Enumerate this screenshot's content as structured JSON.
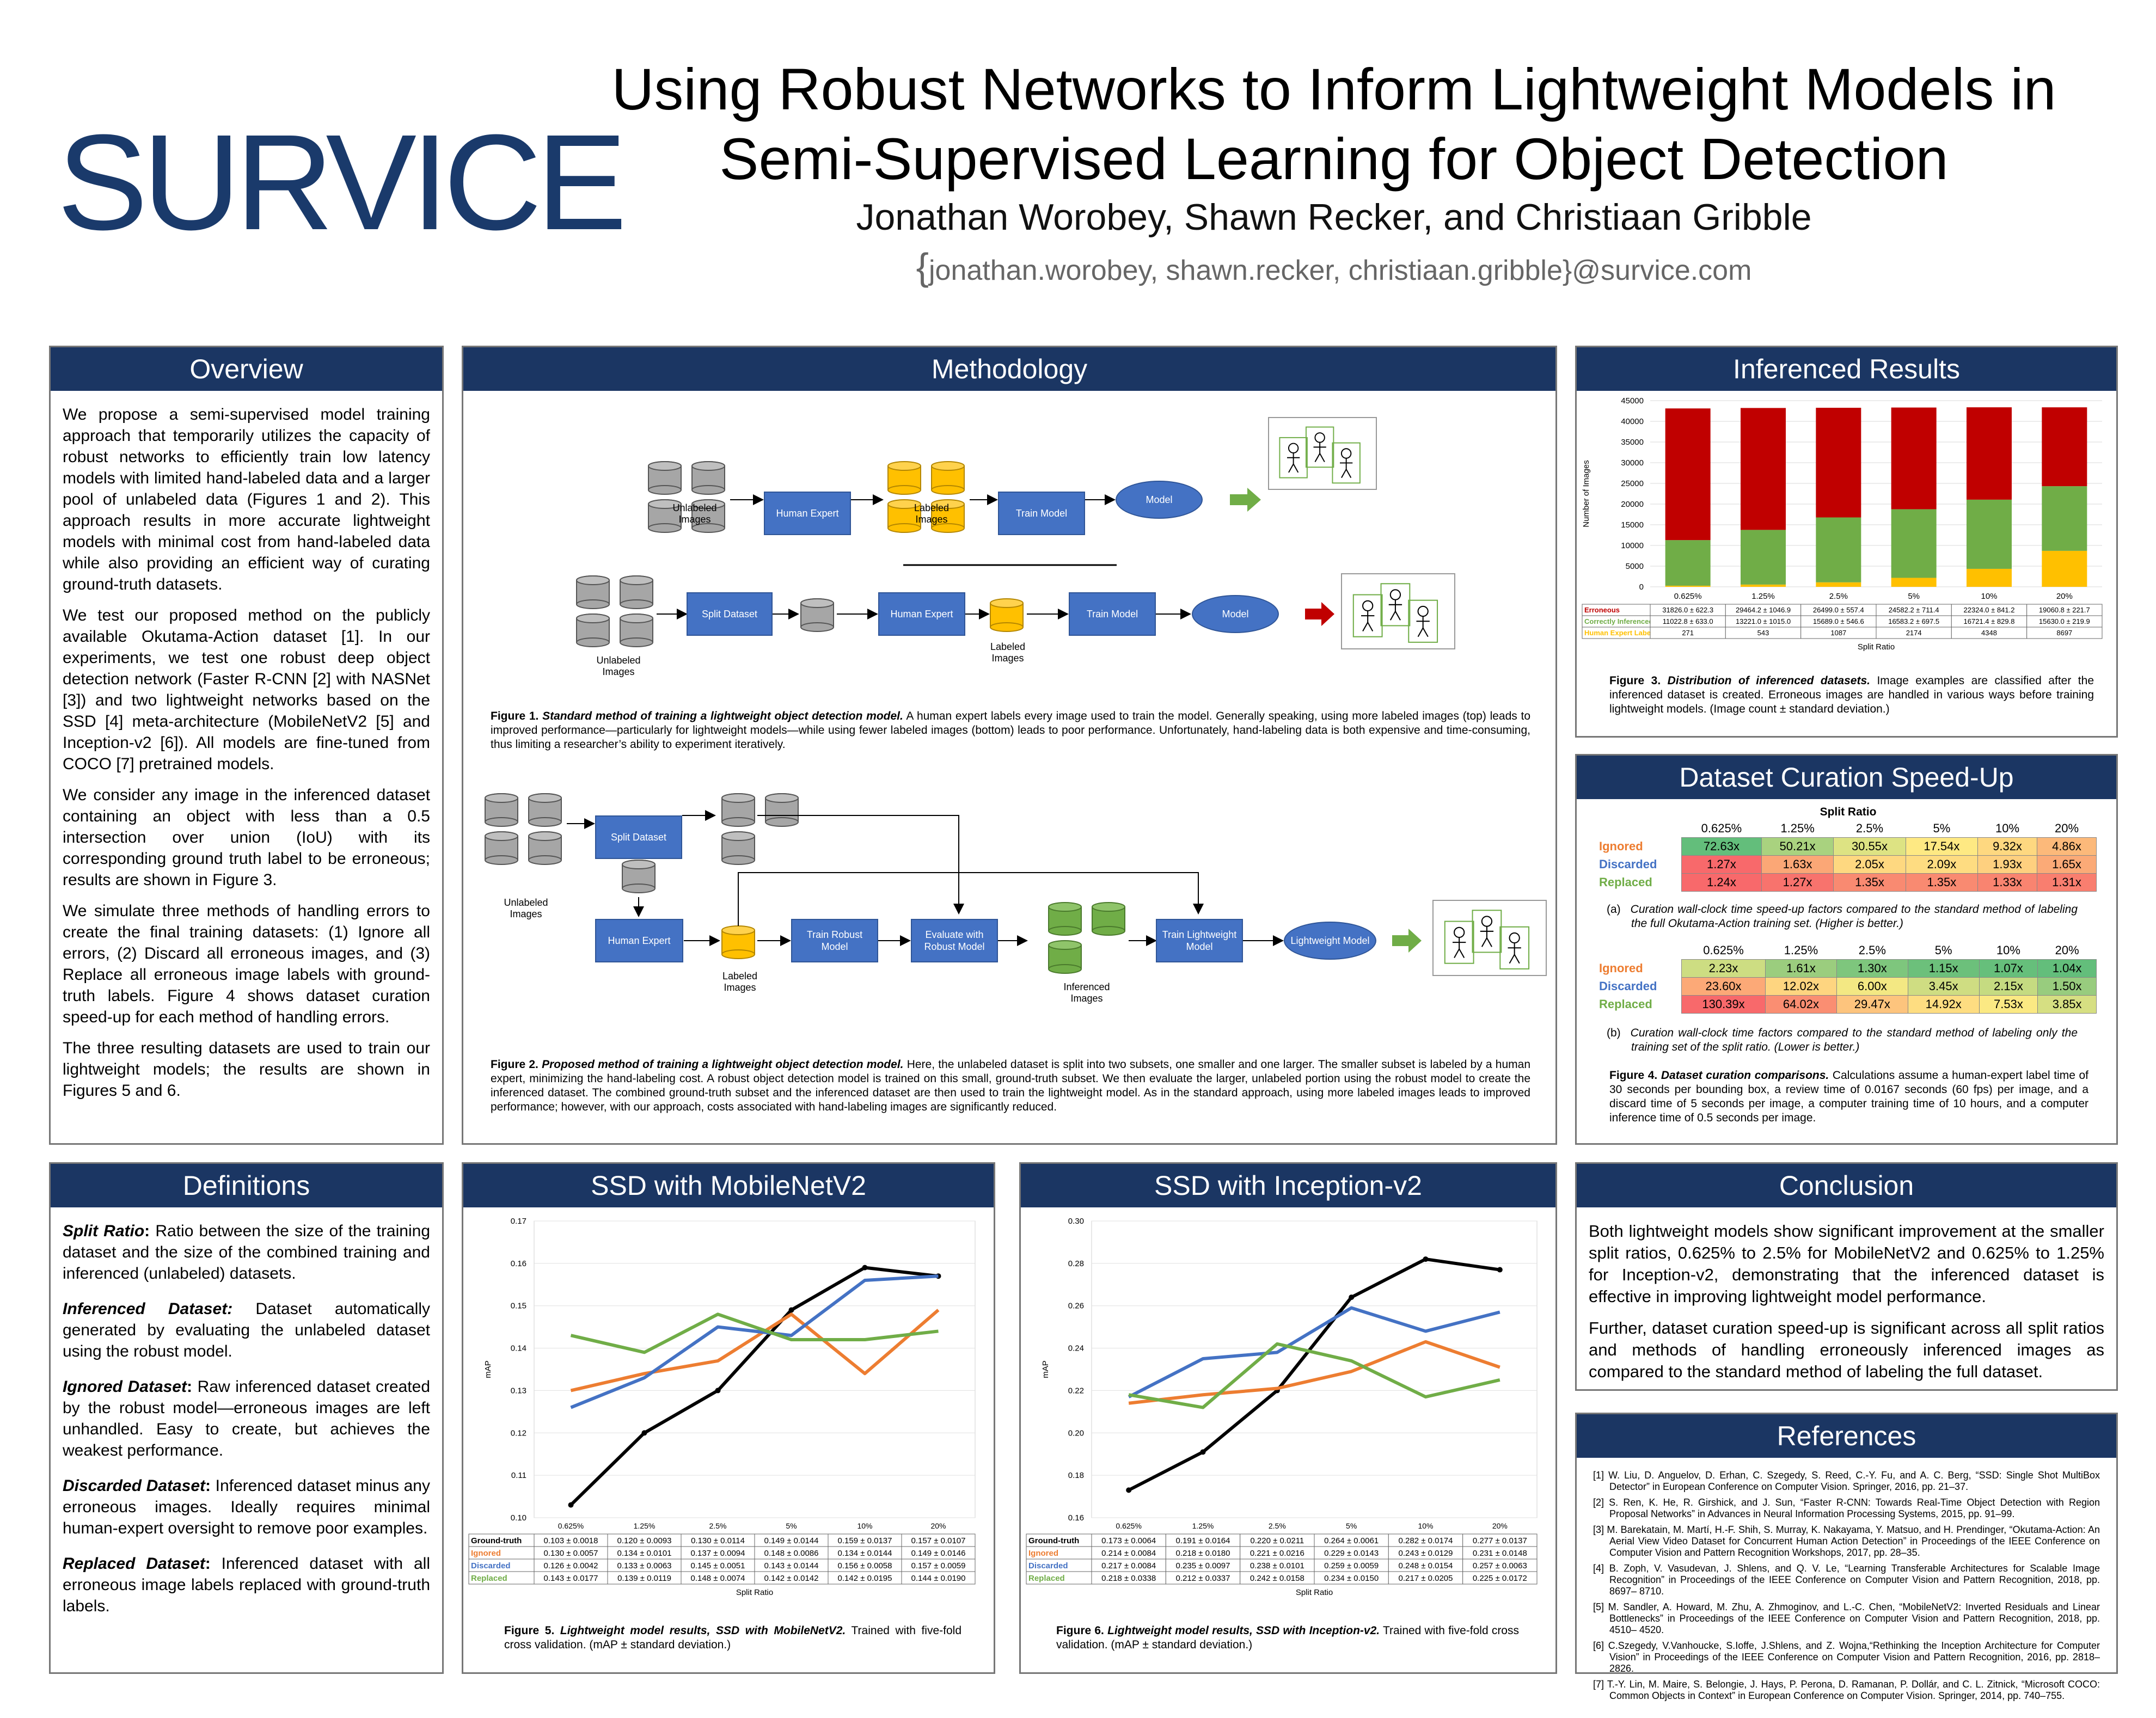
{
  "header": {
    "logo": "SURVICE",
    "title_line1": "Using Robust Networks to Inform Lightweight Models in",
    "title_line2": "Semi-Supervised Learning for Object Detection",
    "authors": "Jonathan Worobey, Shawn Recker, and Christiaan Gribble",
    "emails_brace": "{",
    "emails": "jonathan.worobey, shawn.recker, christiaan.gribble}@survice.com"
  },
  "overview": {
    "title": "Overview",
    "p1": "We propose a semi-supervised model training approach that temporarily utilizes the capacity of robust networks to efficiently train low latency models with limited hand-labeled data and a larger pool of unlabeled data (Figures 1 and 2). This approach results in more accurate lightweight models with minimal cost from hand-labeled data while also providing an efficient way of curating ground-truth datasets.",
    "p2": "We test our proposed method on the publicly available Okutama-Action dataset [1]. In our experiments, we test one robust deep object detection network (Faster R-CNN [2] with NASNet [3]) and two lightweight networks based on the SSD [4] meta-architecture (MobileNetV2 [5] and Inception-v2 [6]). All models are fine-tuned from COCO [7] pretrained models.",
    "p3": "We consider any image in the inferenced dataset containing an object with less than a 0.5 intersection over union (IoU) with its corresponding ground truth label to be erroneous; results are shown in Figure 3.",
    "p4": "We simulate three methods of handling errors to create the final training datasets: (1) Ignore all errors, (2) Discard all erroneous images, and (3) Replace all erroneous image labels with ground-truth labels. Figure 4 shows dataset curation speed-up for each method of handling errors.",
    "p5": "The three resulting datasets are used to train our lightweight models; the results are shown in Figures 5 and 6."
  },
  "methodology": {
    "title": "Methodology",
    "unlabeled_images": "Unlabeled Images",
    "labeled_images": "Labeled Images",
    "inferenced_images": "Inferenced Images",
    "human_expert": "Human Expert",
    "train_model": "Train Model",
    "model": "Model",
    "split_dataset": "Split Dataset",
    "train_robust_model": "Train Robust Model",
    "evaluate_with_robust_model": "Evaluate with Robust Model",
    "train_lightweight_model": "Train Lightweight Model",
    "lightweight_model": "Lightweight Model",
    "fig1_label": "Figure 1.",
    "fig1_bold": "Standard method of training a lightweight object detection model.",
    "fig1_text": "A human expert labels every image used to train the model. Generally speaking, using more labeled images (top) leads to improved performance—particularly for lightweight models—while using fewer labeled images (bottom) leads to poor performance. Unfortunately, hand-labeling data is both expensive and time-consuming, thus limiting a researcher’s ability to experiment iteratively.",
    "fig2_label": "Figure 2.",
    "fig2_bold": "Proposed method of training a lightweight object detection model.",
    "fig2_text": "Here, the unlabeled dataset is split into two subsets, one smaller and one larger. The smaller subset is labeled by a human expert, minimizing the hand-labeling cost. A robust object detection model is trained on this small, ground-truth subset. We then evaluate the larger, unlabeled portion using the robust model to create the inferenced dataset. The combined ground-truth subset and the inferenced dataset are then used to train the lightweight model. As in the standard approach, using more labeled images leads to improved performance; however, with our approach, costs associated with hand-labeling images are significantly reduced."
  },
  "inferenced": {
    "title": "Inferenced Results",
    "chart_data": {
      "type": "bar",
      "stacked": true,
      "categories": [
        "0.625%",
        "1.25%",
        "2.5%",
        "5%",
        "10%",
        "20%"
      ],
      "xlabel": "Split Ratio",
      "ylabel": "Number of Images",
      "ylim": [
        0,
        45000
      ],
      "yticks": [
        0,
        5000,
        10000,
        15000,
        20000,
        25000,
        30000,
        35000,
        40000,
        45000
      ],
      "series": [
        {
          "name": "Human Expert Labeled",
          "color": "#ffc000",
          "values": [
            271,
            543,
            1087,
            2174,
            4348,
            8697
          ]
        },
        {
          "name": "Correctly Inferenced",
          "color": "#70ad47",
          "values": [
            11022.8,
            13221.0,
            15689.0,
            16583.2,
            16721.4,
            15630.0
          ]
        },
        {
          "name": "Erroneous",
          "color": "#c00000",
          "values": [
            31826.0,
            29464.2,
            26499.0,
            24582.2,
            22324.0,
            19060.8
          ]
        }
      ],
      "table_rows": [
        {
          "name": "Erroneous",
          "color": "#c00000",
          "cells": [
            "31826.0 ± 622.3",
            "29464.2 ± 1046.9",
            "26499.0 ± 557.4",
            "24582.2 ± 711.4",
            "22324.0 ± 841.2",
            "19060.8 ± 221.7"
          ]
        },
        {
          "name": "Correctly Inferenced",
          "color": "#70ad47",
          "cells": [
            "11022.8 ± 633.0",
            "13221.0 ± 1015.0",
            "15689.0 ± 546.6",
            "16583.2 ± 697.5",
            "16721.4 ± 829.8",
            "15630.0 ± 219.9"
          ]
        },
        {
          "name": "Human Expert Labeled",
          "color": "#ffc000",
          "cells": [
            "271",
            "543",
            "1087",
            "2174",
            "4348",
            "8697"
          ]
        }
      ]
    },
    "fig3_label": "Figure 3.",
    "fig3_bold": "Distribution of inferenced datasets.",
    "fig3_text": "Image examples are classified after the inferenced dataset is created. Erroneous images are handled in various ways before training lightweight models. (Image count ± standard deviation.)"
  },
  "speedup": {
    "title": "Dataset Curation Speed-Up",
    "split_ratio": "Split Ratio",
    "cols": [
      "0.625%",
      "1.25%",
      "2.5%",
      "5%",
      "10%",
      "20%"
    ],
    "table_a": [
      {
        "name": "Ignored",
        "color": "#ed7d31",
        "cells": [
          "72.63x",
          "50.21x",
          "30.55x",
          "17.54x",
          "9.32x",
          "4.86x"
        ],
        "bg": [
          "#63be7b",
          "#a9d27f",
          "#dde383",
          "#fee983",
          "#fed880",
          "#fcb97a"
        ]
      },
      {
        "name": "Discarded",
        "color": "#4472c4",
        "cells": [
          "1.27x",
          "1.63x",
          "2.05x",
          "2.09x",
          "1.93x",
          "1.65x"
        ],
        "bg": [
          "#f8696b",
          "#fba776",
          "#fed880",
          "#fedc81",
          "#fed07f",
          "#fbaa77"
        ]
      },
      {
        "name": "Replaced",
        "color": "#70ad47",
        "cells": [
          "1.24x",
          "1.27x",
          "1.35x",
          "1.35x",
          "1.33x",
          "1.31x"
        ],
        "bg": [
          "#f8696b",
          "#f8736d",
          "#f98a71",
          "#f98a71",
          "#f98470",
          "#f97e6f"
        ]
      }
    ],
    "caption_a_label": "(a)",
    "caption_a": "Curation wall-clock time speed-up factors compared to the standard method of labeling the full Okutama-Action training set. (Higher is better.)",
    "table_b": [
      {
        "name": "Ignored",
        "color": "#ed7d31",
        "cells": [
          "2.23x",
          "1.61x",
          "1.30x",
          "1.15x",
          "1.07x",
          "1.04x"
        ],
        "bg": [
          "#cddd82",
          "#9bcd7e",
          "#7ec67d",
          "#6cc07b",
          "#66bf7b",
          "#63be7b"
        ]
      },
      {
        "name": "Discarded",
        "color": "#4472c4",
        "cells": [
          "23.60x",
          "12.02x",
          "6.00x",
          "3.45x",
          "2.15x",
          "1.50x"
        ],
        "bg": [
          "#fca977",
          "#fed580",
          "#f3e883",
          "#cfdd82",
          "#c5db81",
          "#98cc7e"
        ]
      },
      {
        "name": "Replaced",
        "color": "#70ad47",
        "cells": [
          "130.39x",
          "64.02x",
          "29.47x",
          "14.92x",
          "7.53x",
          "3.85x"
        ],
        "bg": [
          "#f8696b",
          "#fa8e72",
          "#fdc47d",
          "#fedd81",
          "#fbe983",
          "#d6df82"
        ]
      }
    ],
    "caption_b_label": "(b)",
    "caption_b": "Curation wall-clock time factors compared to the standard method of labeling only the training set of the split ratio. (Lower is better.)",
    "fig4_label": "Figure 4.",
    "fig4_bold": "Dataset curation comparisons.",
    "fig4_text": "Calculations assume a human-expert label time of 30 seconds per bounding box, a review time of 0.0167 seconds (60 fps) per image, and a discard time of 5 seconds per image, a computer training time of 10 hours, and a computer inference time of 0.5 seconds per image."
  },
  "definitions": {
    "title": "Definitions",
    "items": [
      {
        "term": "Split Ratio",
        "text": "Ratio between the size of the training dataset and the size of the combined training and inferenced (unlabeled) datasets."
      },
      {
        "term": "Inferenced Dataset:",
        "text": "Dataset automatically generated by evaluating the unlabeled dataset using the robust model."
      },
      {
        "term": "Ignored Dataset",
        "text": "Raw inferenced dataset created by the robust model—erroneous images are left unhandled. Easy to create, but achieves the weakest performance."
      },
      {
        "term": "Discarded Dataset",
        "text": "Inferenced dataset minus any erroneous images. Ideally requires minimal human-expert oversight to remove poor examples."
      },
      {
        "term": "Replaced Dataset",
        "text": "Inferenced dataset with all erroneous image labels replaced with ground-truth labels."
      }
    ]
  },
  "mobilenet": {
    "title": "SSD with MobileNetV2",
    "chart_data": {
      "type": "line",
      "categories": [
        "0.625%",
        "1.25%",
        "2.5%",
        "5%",
        "10%",
        "20%"
      ],
      "xlabel": "Split Ratio",
      "ylabel": "mAP",
      "ylim": [
        0.1,
        0.17
      ],
      "yticks": [
        "0.10",
        "0.11",
        "0.12",
        "0.13",
        "0.14",
        "0.15",
        "0.16",
        "0.17"
      ],
      "series": [
        {
          "name": "Ground-truth",
          "color": "#000000",
          "values": [
            0.103,
            0.12,
            0.13,
            0.149,
            0.159,
            0.157
          ]
        },
        {
          "name": "Ignored",
          "color": "#ed7d31",
          "values": [
            0.13,
            0.134,
            0.137,
            0.148,
            0.134,
            0.149
          ]
        },
        {
          "name": "Discarded",
          "color": "#4472c4",
          "values": [
            0.126,
            0.133,
            0.145,
            0.143,
            0.156,
            0.157
          ]
        },
        {
          "name": "Replaced",
          "color": "#70ad47",
          "values": [
            0.143,
            0.139,
            0.148,
            0.142,
            0.142,
            0.144
          ]
        }
      ],
      "table_rows": [
        {
          "name": "Ground-truth",
          "color": "#000000",
          "cells": [
            "0.103 ± 0.0018",
            "0.120 ± 0.0093",
            "0.130 ± 0.0114",
            "0.149 ± 0.0144",
            "0.159 ± 0.0137",
            "0.157 ± 0.0107"
          ]
        },
        {
          "name": "Ignored",
          "color": "#ed7d31",
          "cells": [
            "0.130 ± 0.0057",
            "0.134 ± 0.0101",
            "0.137 ± 0.0094",
            "0.148 ± 0.0086",
            "0.134 ± 0.0144",
            "0.149 ± 0.0146"
          ]
        },
        {
          "name": "Discarded",
          "color": "#4472c4",
          "cells": [
            "0.126 ± 0.0042",
            "0.133 ± 0.0063",
            "0.145 ± 0.0051",
            "0.143 ± 0.0144",
            "0.156 ± 0.0058",
            "0.157 ± 0.0059"
          ]
        },
        {
          "name": "Replaced",
          "color": "#70ad47",
          "cells": [
            "0.143 ± 0.0177",
            "0.139 ± 0.0119",
            "0.148 ± 0.0074",
            "0.142 ± 0.0142",
            "0.142 ± 0.0195",
            "0.144 ± 0.0190"
          ]
        }
      ]
    },
    "fig_label": "Figure 5.",
    "fig_bold": "Lightweight model results, SSD with MobileNetV2.",
    "fig_text": "Trained with five-fold cross validation. (mAP ± standard deviation.)"
  },
  "inception": {
    "title": "SSD with Inception-v2",
    "chart_data": {
      "type": "line",
      "categories": [
        "0.625%",
        "1.25%",
        "2.5%",
        "5%",
        "10%",
        "20%"
      ],
      "xlabel": "Split Ratio",
      "ylabel": "mAP",
      "ylim": [
        0.16,
        0.3
      ],
      "yticks": [
        "0.16",
        "0.18",
        "0.20",
        "0.22",
        "0.24",
        "0.26",
        "0.28",
        "0.30"
      ],
      "series": [
        {
          "name": "Ground-truth",
          "color": "#000000",
          "values": [
            0.173,
            0.191,
            0.22,
            0.264,
            0.282,
            0.277
          ]
        },
        {
          "name": "Ignored",
          "color": "#ed7d31",
          "values": [
            0.214,
            0.218,
            0.221,
            0.229,
            0.243,
            0.231
          ]
        },
        {
          "name": "Discarded",
          "color": "#4472c4",
          "values": [
            0.217,
            0.235,
            0.238,
            0.259,
            0.248,
            0.257
          ]
        },
        {
          "name": "Replaced",
          "color": "#70ad47",
          "values": [
            0.218,
            0.212,
            0.242,
            0.234,
            0.217,
            0.225
          ]
        }
      ],
      "table_rows": [
        {
          "name": "Ground-truth",
          "color": "#000000",
          "cells": [
            "0.173 ± 0.0064",
            "0.191 ± 0.0164",
            "0.220 ± 0.0211",
            "0.264 ± 0.0061",
            "0.282 ± 0.0174",
            "0.277 ± 0.0137"
          ]
        },
        {
          "name": "Ignored",
          "color": "#ed7d31",
          "cells": [
            "0.214 ± 0.0084",
            "0.218 ± 0.0180",
            "0.221 ± 0.0216",
            "0.229 ± 0.0143",
            "0.243 ± 0.0129",
            "0.231 ± 0.0148"
          ]
        },
        {
          "name": "Discarded",
          "color": "#4472c4",
          "cells": [
            "0.217 ± 0.0084",
            "0.235 ± 0.0097",
            "0.238 ± 0.0101",
            "0.259 ± 0.0059",
            "0.248 ± 0.0154",
            "0.257 ± 0.0063"
          ]
        },
        {
          "name": "Replaced",
          "color": "#70ad47",
          "cells": [
            "0.218 ± 0.0338",
            "0.212 ± 0.0337",
            "0.242 ± 0.0158",
            "0.234 ± 0.0150",
            "0.217 ± 0.0205",
            "0.225 ± 0.0172"
          ]
        }
      ]
    },
    "fig_label": "Figure 6.",
    "fig_bold": "Lightweight model results, SSD with Inception-v2.",
    "fig_text": "Trained with five-fold cross validation. (mAP ± standard deviation.)"
  },
  "conclusion": {
    "title": "Conclusion",
    "p1": "Both lightweight models show significant improvement at the smaller split ratios, 0.625% to 2.5% for MobileNetV2 and 0.625% to 1.25% for Inception-v2, demonstrating that the inferenced dataset is effective in improving lightweight model performance.",
    "p2": "Further, dataset curation speed-up is significant across all split ratios and methods of handling erroneously inferenced images as compared to the standard method of labeling the full dataset."
  },
  "references": {
    "title": "References",
    "items": [
      "[1]  W. Liu, D. Anguelov, D. Erhan, C. Szegedy, S. Reed, C.-Y. Fu, and A. C. Berg, “SSD: Single Shot MultiBox Detector” in European Conference on Computer Vision. Springer, 2016, pp. 21–37.",
      "[2]  S. Ren, K. He, R. Girshick, and J. Sun, “Faster R-CNN: Towards Real-Time Object Detection with Region Proposal Networks” in Advances in Neural Information Processing Systems, 2015, pp. 91–99.",
      "[3]  M. Barekatain, M. Martí, H.-F. Shih, S. Murray, K. Nakayama, Y. Matsuo, and H. Prendinger, “Okutama-Action: An Aerial View Video Dataset for Concurrent Human Action Detection” in Proceedings of the IEEE Conference on Computer Vision and Pattern Recognition Workshops, 2017, pp. 28–35.",
      "[4]  B. Zoph, V. Vasudevan, J. Shlens, and Q. V. Le, “Learning Transferable Architectures for Scalable Image Recognition” in Proceedings of the IEEE Conference on Computer Vision and Pattern Recognition, 2018, pp. 8697– 8710.",
      "[5]  M. Sandler, A. Howard, M. Zhu, A. Zhmoginov, and L.-C. Chen, “MobileNetV2: Inverted Residuals and Linear Bottlenecks” in Proceedings of the IEEE Conference on Computer Vision and Pattern Recognition, 2018, pp. 4510– 4520.",
      "[6]  C.Szegedy, V.Vanhoucke, S.Ioffe, J.Shlens, and Z. Wojna,“Rethinking the Inception Architecture for Computer Vision” in Proceedings of the IEEE Conference on Computer Vision and Pattern Recognition, 2016, pp. 2818–2826.",
      "[7]  T.-Y. Lin, M. Maire, S. Belongie, J. Hays, P. Perona, D. Ramanan, P. Dollár, and C. L. Zitnick, “Microsoft COCO: Common Objects in Context” in European Conference on Computer Vision. Springer, 2014, pp. 740–755."
    ]
  }
}
